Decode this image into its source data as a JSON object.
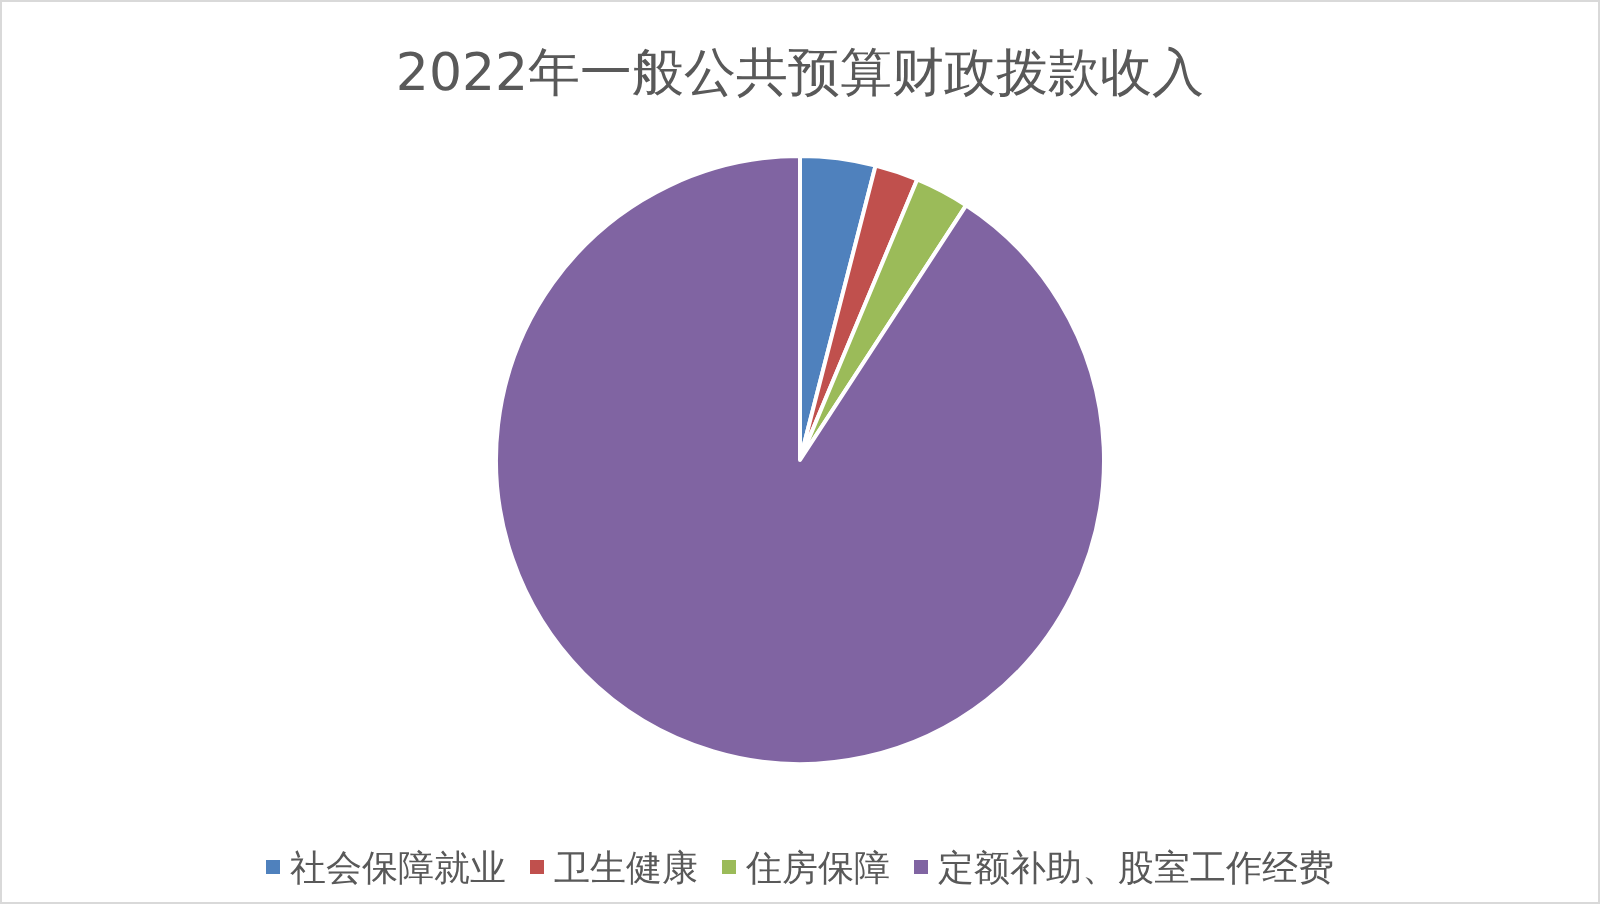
{
  "chart_data": {
    "type": "pie",
    "title": "2022年一般公共预算财政拨款收入",
    "categories": [
      "社会保障就业",
      "卫生健康",
      "住房保障",
      "定额补助、股室工作经费"
    ],
    "values": [
      4.0,
      2.3,
      2.9,
      90.8
    ],
    "colors": [
      "#4f81bd",
      "#c0504d",
      "#9bbb59",
      "#8064a2"
    ],
    "legend": "bottom"
  }
}
